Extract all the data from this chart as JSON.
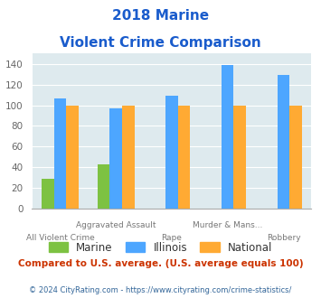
{
  "title_line1": "2018 Marine",
  "title_line2": "Violent Crime Comparison",
  "marine": [
    29,
    43,
    0,
    0,
    0
  ],
  "illinois": [
    107,
    97,
    109,
    139,
    129
  ],
  "national": [
    100,
    100,
    100,
    100,
    100
  ],
  "color_marine": "#7dc242",
  "color_illinois": "#4da6ff",
  "color_national": "#ffaa33",
  "ylim": [
    0,
    150
  ],
  "yticks": [
    0,
    20,
    40,
    60,
    80,
    100,
    120,
    140
  ],
  "bg_color": "#deeaee",
  "title_color": "#1a5ccc",
  "footer_color": "#336699",
  "note_color": "#cc3300",
  "xlabel_top": [
    "",
    "Aggravated Assault",
    "",
    "Murder & Mans...",
    ""
  ],
  "xlabel_bot": [
    "All Violent Crime",
    "",
    "Rape",
    "",
    "Robbery"
  ],
  "footer_text": "© 2024 CityRating.com - https://www.cityrating.com/crime-statistics/",
  "note_text": "Compared to U.S. average. (U.S. average equals 100)"
}
